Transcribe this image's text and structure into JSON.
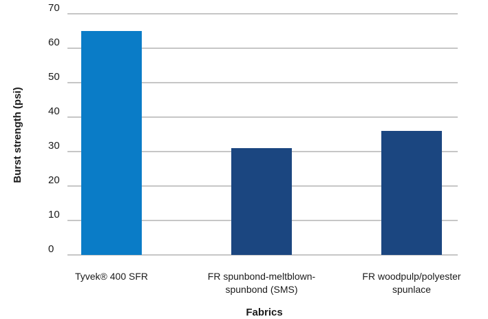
{
  "chart_data": {
    "type": "bar",
    "categories": [
      [
        "Tyvek® 400 SFR"
      ],
      [
        "FR spunbond-meltblown-",
        "spunbond (SMS)"
      ],
      [
        "FR woodpulp/polyester",
        "spunlace"
      ]
    ],
    "values": [
      65,
      31,
      36
    ],
    "xlabel": "Fabrics",
    "ylabel": "Burst strength (psi)",
    "ylim": [
      0,
      70
    ],
    "yticks": [
      "0",
      "10",
      "20",
      "30",
      "40",
      "50",
      "60",
      "70"
    ],
    "grid": true,
    "colors": [
      "#0a7cc7",
      "#1b4680",
      "#1b4680"
    ]
  }
}
